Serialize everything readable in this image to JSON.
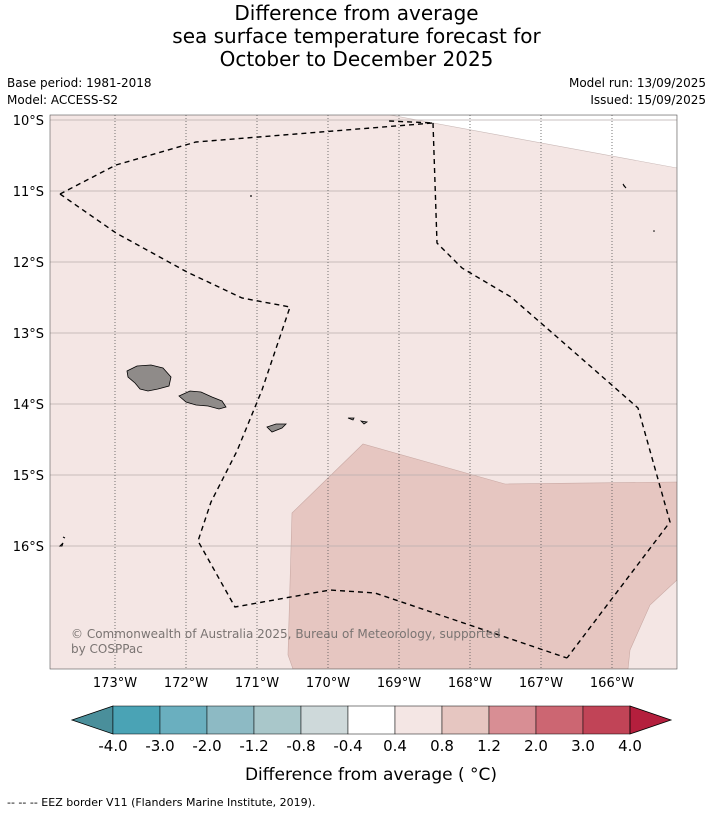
{
  "title": {
    "line1": "Difference from average",
    "line2": "sea surface temperature forecast for",
    "line3": "October to December 2025"
  },
  "meta": {
    "base_period": "Base period: 1981-2018",
    "model": "Model: ACCESS-S2",
    "model_run": "Model run: 13/09/2025",
    "issued": "Issued: 15/09/2025"
  },
  "map": {
    "lat_labels": [
      "10°S",
      "11°S",
      "12°S",
      "13°S",
      "14°S",
      "15°S",
      "16°S"
    ],
    "lon_labels": [
      "173°W",
      "172°W",
      "171°W",
      "170°W",
      "169°W",
      "168°W",
      "167°W",
      "166°W"
    ],
    "copyright_line1": "© Commonwealth of Australia 2025, Bureau of Meteorology, supported",
    "copyright_line2": "by COSPPac",
    "colors": {
      "anomaly_0_4_to_0_8": "#f4e6e4",
      "anomaly_0_8_to_1_2": "#e6c6c1",
      "land": "#8f8b89",
      "gridline": "#b8aeac"
    }
  },
  "colorbar": {
    "tick_labels": [
      "-4.0",
      "-3.0",
      "-2.0",
      "-1.2",
      "-0.8",
      "-0.4",
      "0.4",
      "0.8",
      "1.2",
      "2.0",
      "3.0",
      "4.0"
    ],
    "colors": [
      "#4a8f9b",
      "#4aa3b5",
      "#6aafbf",
      "#8dbac4",
      "#a9c7ca",
      "#ced9da",
      "#ffffff",
      "#f4e6e4",
      "#e6c6c1",
      "#d88e94",
      "#cc6672",
      "#c14457",
      "#b41f3d"
    ],
    "label": "Difference from average ( °C)"
  },
  "footer": "--  --  -- EEZ border V11 (Flanders Marine Institute, 2019)."
}
